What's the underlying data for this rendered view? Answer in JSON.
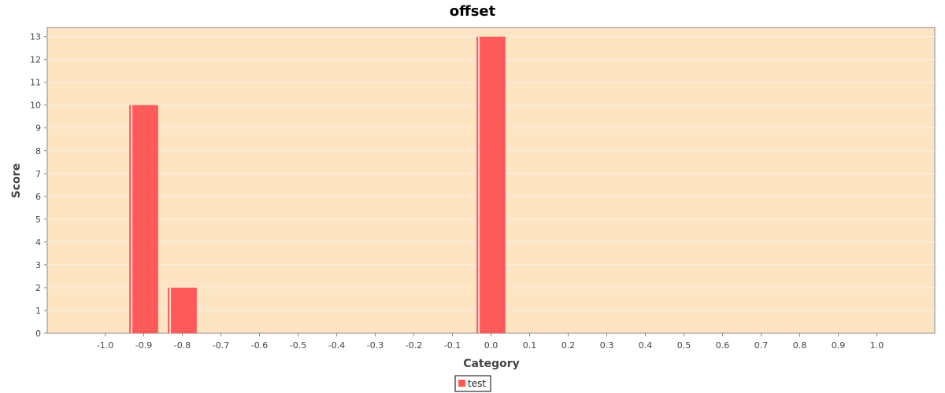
{
  "chart_data": {
    "type": "bar",
    "title": "offset",
    "xlabel": "Category",
    "ylabel": "Score",
    "x_ticks": [
      "-1.0",
      "-0.9",
      "-0.8",
      "-0.7",
      "-0.6",
      "-0.5",
      "-0.4",
      "-0.3",
      "-0.2",
      "-0.1",
      "0.0",
      "0.1",
      "0.2",
      "0.3",
      "0.4",
      "0.5",
      "0.6",
      "0.7",
      "0.8",
      "0.9",
      "1.0"
    ],
    "y_ticks": [
      "0",
      "1",
      "2",
      "3",
      "4",
      "5",
      "6",
      "7",
      "8",
      "9",
      "10",
      "11",
      "12",
      "13"
    ],
    "xlim": [
      -1.15,
      1.15
    ],
    "ylim": [
      0,
      13.4
    ],
    "bar_width": 0.075,
    "series": [
      {
        "name": "test",
        "points": [
          {
            "x": -0.9,
            "y": 10
          },
          {
            "x": -0.8,
            "y": 2
          },
          {
            "x": 0.0,
            "y": 13
          }
        ]
      }
    ],
    "colors": {
      "plot_background": "#fde4c3",
      "bar": "#ff5a5a",
      "bar_highlight": "#ffd6d6",
      "gridline": "#f7f0e6",
      "axis": "#888888"
    },
    "grid": true,
    "legend_position": "bottom"
  }
}
